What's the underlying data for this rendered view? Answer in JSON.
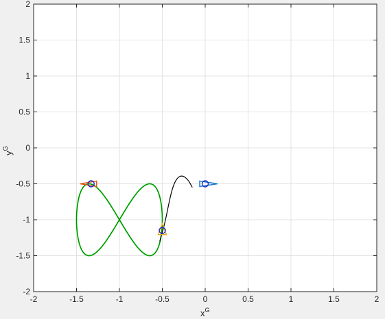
{
  "chart_data": {
    "type": "line",
    "xlabel": "x",
    "xlabel_superscript": "G",
    "ylabel": "y",
    "ylabel_superscript": "G",
    "xlim": [
      -2,
      2
    ],
    "ylim": [
      -2,
      2
    ],
    "xticks": [
      -2,
      -1.5,
      -1,
      -0.5,
      0,
      0.5,
      1,
      1.5,
      2
    ],
    "yticks": [
      -2,
      -1.5,
      -1,
      -0.5,
      0,
      0.5,
      1,
      1.5,
      2
    ],
    "xtick_labels": [
      "-2",
      "-1.5",
      "-1",
      "-0.5",
      "0",
      "0.5",
      "1",
      "1.5",
      "2"
    ],
    "ytick_labels": [
      "-2",
      "-1.5",
      "-1",
      "-0.5",
      "0",
      "0.5",
      "1",
      "1.5",
      "2"
    ],
    "grid": true,
    "reference_path": {
      "color": "#00cc00",
      "shape": "figure-eight (lemniscate)",
      "center": [
        -1.0,
        -1.0
      ],
      "half_width": 0.5,
      "half_height": 0.5
    },
    "trajectory": {
      "color": "#000000",
      "points": [
        [
          -0.15,
          -0.55
        ],
        [
          -0.2,
          -0.44
        ],
        [
          -0.27,
          -0.38
        ],
        [
          -0.33,
          -0.42
        ],
        [
          -0.38,
          -0.55
        ],
        [
          -0.42,
          -0.75
        ],
        [
          -0.47,
          -1.05
        ],
        [
          -0.53,
          -1.3
        ]
      ]
    },
    "agents": [
      {
        "name": "agent-red",
        "color": "#e05a1a",
        "marker_color": "#2222cc",
        "position": [
          -1.33,
          -0.5
        ],
        "heading": "left"
      },
      {
        "name": "agent-yellow",
        "color": "#e8b020",
        "marker_color": "#2222cc",
        "position": [
          -0.5,
          -1.15
        ],
        "heading": "up"
      },
      {
        "name": "agent-blue",
        "color": "#1a80d0",
        "marker_color": "#2222cc",
        "position": [
          0.0,
          -0.5
        ],
        "heading": "right"
      }
    ]
  }
}
